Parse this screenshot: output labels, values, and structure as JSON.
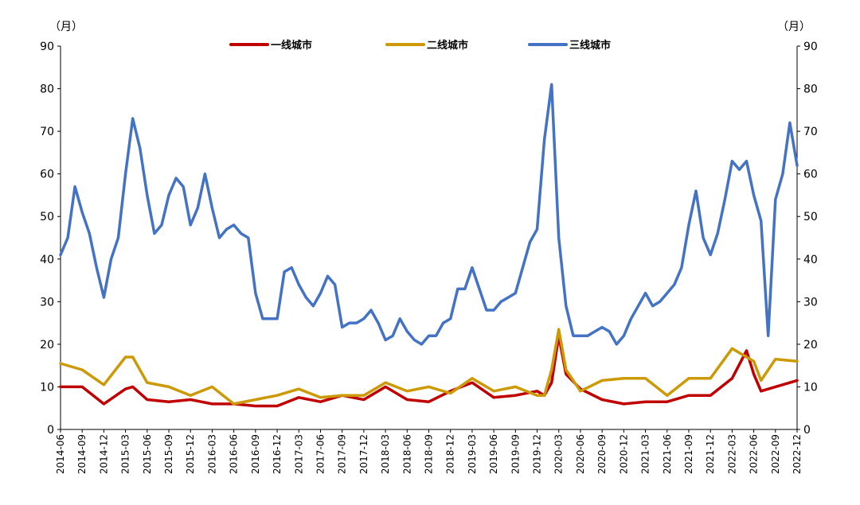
{
  "chart_data": {
    "type": "line",
    "left_unit_label": "（月）",
    "right_unit_label": "（月）",
    "ylim": [
      0,
      90
    ],
    "yticks": [
      0,
      10,
      20,
      30,
      40,
      50,
      60,
      70,
      80,
      90
    ],
    "grid": false,
    "legend_position": "top-center",
    "x_start": "2014-06",
    "x_end": "2022-12",
    "x_tick_labels": [
      "2014-06",
      "2014-09",
      "2014-12",
      "2015-03",
      "2015-06",
      "2015-09",
      "2015-12",
      "2016-03",
      "2016-06",
      "2016-09",
      "2016-12",
      "2017-03",
      "2017-06",
      "2017-09",
      "2017-12",
      "2018-03",
      "2018-06",
      "2018-09",
      "2018-12",
      "2019-03",
      "2019-06",
      "2019-09",
      "2019-12",
      "2020-03",
      "2020-06",
      "2020-09",
      "2020-12",
      "2021-03",
      "2021-06",
      "2021-09",
      "2021-12",
      "2022-03",
      "2022-06",
      "2022-09",
      "2022-12"
    ],
    "series": [
      {
        "name": "一线城市",
        "color": "#C00000",
        "points": [
          [
            "2014-06",
            10
          ],
          [
            "2014-09",
            10
          ],
          [
            "2014-12",
            6
          ],
          [
            "2015-03",
            9.5
          ],
          [
            "2015-04",
            10
          ],
          [
            "2015-06",
            7
          ],
          [
            "2015-09",
            6.5
          ],
          [
            "2015-12",
            7
          ],
          [
            "2016-03",
            6
          ],
          [
            "2016-06",
            6
          ],
          [
            "2016-09",
            5.5
          ],
          [
            "2016-12",
            5.5
          ],
          [
            "2017-03",
            7.5
          ],
          [
            "2017-06",
            6.5
          ],
          [
            "2017-09",
            8
          ],
          [
            "2017-12",
            7
          ],
          [
            "2018-03",
            10
          ],
          [
            "2018-06",
            7
          ],
          [
            "2018-09",
            6.5
          ],
          [
            "2018-12",
            9
          ],
          [
            "2019-03",
            11
          ],
          [
            "2019-06",
            7.5
          ],
          [
            "2019-09",
            8
          ],
          [
            "2019-12",
            9
          ],
          [
            "2020-01",
            8
          ],
          [
            "2020-02",
            11
          ],
          [
            "2020-03",
            22
          ],
          [
            "2020-04",
            13
          ],
          [
            "2020-06",
            9.5
          ],
          [
            "2020-09",
            7
          ],
          [
            "2020-12",
            6
          ],
          [
            "2021-03",
            6.5
          ],
          [
            "2021-06",
            6.5
          ],
          [
            "2021-09",
            8
          ],
          [
            "2021-12",
            8
          ],
          [
            "2022-03",
            12
          ],
          [
            "2022-05",
            18.5
          ],
          [
            "2022-06",
            13
          ],
          [
            "2022-07",
            9
          ],
          [
            "2022-09",
            10
          ],
          [
            "2022-12",
            11.5
          ]
        ]
      },
      {
        "name": "二线城市",
        "color": "#CC9A06",
        "points": [
          [
            "2014-06",
            15.5
          ],
          [
            "2014-09",
            14
          ],
          [
            "2014-12",
            10.5
          ],
          [
            "2015-03",
            17
          ],
          [
            "2015-04",
            17
          ],
          [
            "2015-06",
            11
          ],
          [
            "2015-09",
            10
          ],
          [
            "2015-12",
            8
          ],
          [
            "2016-03",
            10
          ],
          [
            "2016-06",
            6
          ],
          [
            "2016-09",
            7
          ],
          [
            "2016-12",
            8
          ],
          [
            "2017-03",
            9.5
          ],
          [
            "2017-06",
            7.5
          ],
          [
            "2017-09",
            8
          ],
          [
            "2017-12",
            8
          ],
          [
            "2018-03",
            11
          ],
          [
            "2018-06",
            9
          ],
          [
            "2018-09",
            10
          ],
          [
            "2018-12",
            8.5
          ],
          [
            "2019-03",
            12
          ],
          [
            "2019-06",
            9
          ],
          [
            "2019-09",
            10
          ],
          [
            "2019-12",
            8
          ],
          [
            "2020-01",
            8
          ],
          [
            "2020-02",
            14
          ],
          [
            "2020-03",
            23.5
          ],
          [
            "2020-04",
            14
          ],
          [
            "2020-06",
            9
          ],
          [
            "2020-09",
            11.5
          ],
          [
            "2020-12",
            12
          ],
          [
            "2021-03",
            12
          ],
          [
            "2021-06",
            8
          ],
          [
            "2021-09",
            12
          ],
          [
            "2021-12",
            12
          ],
          [
            "2022-03",
            19
          ],
          [
            "2022-05",
            17
          ],
          [
            "2022-06",
            16
          ],
          [
            "2022-07",
            11.5
          ],
          [
            "2022-09",
            16.5
          ],
          [
            "2022-12",
            16
          ]
        ]
      },
      {
        "name": "三线城市",
        "color": "#4472C4",
        "points": [
          [
            "2014-06",
            41
          ],
          [
            "2014-07",
            45
          ],
          [
            "2014-08",
            57
          ],
          [
            "2014-09",
            51
          ],
          [
            "2014-10",
            46
          ],
          [
            "2014-11",
            38
          ],
          [
            "2014-12",
            31
          ],
          [
            "2015-01",
            40
          ],
          [
            "2015-02",
            45
          ],
          [
            "2015-03",
            60
          ],
          [
            "2015-04",
            73
          ],
          [
            "2015-05",
            66
          ],
          [
            "2015-06",
            55
          ],
          [
            "2015-07",
            46
          ],
          [
            "2015-08",
            48
          ],
          [
            "2015-09",
            55
          ],
          [
            "2015-10",
            59
          ],
          [
            "2015-11",
            57
          ],
          [
            "2015-12",
            48
          ],
          [
            "2016-01",
            52
          ],
          [
            "2016-02",
            60
          ],
          [
            "2016-03",
            52
          ],
          [
            "2016-04",
            45
          ],
          [
            "2016-05",
            47
          ],
          [
            "2016-06",
            48
          ],
          [
            "2016-07",
            46
          ],
          [
            "2016-08",
            45
          ],
          [
            "2016-09",
            32
          ],
          [
            "2016-10",
            26
          ],
          [
            "2016-11",
            26
          ],
          [
            "2016-12",
            26
          ],
          [
            "2017-01",
            37
          ],
          [
            "2017-02",
            38
          ],
          [
            "2017-03",
            34
          ],
          [
            "2017-04",
            31
          ],
          [
            "2017-05",
            29
          ],
          [
            "2017-06",
            32
          ],
          [
            "2017-07",
            36
          ],
          [
            "2017-08",
            34
          ],
          [
            "2017-09",
            24
          ],
          [
            "2017-10",
            25
          ],
          [
            "2017-11",
            25
          ],
          [
            "2017-12",
            26
          ],
          [
            "2018-01",
            28
          ],
          [
            "2018-02",
            25
          ],
          [
            "2018-03",
            21
          ],
          [
            "2018-04",
            22
          ],
          [
            "2018-05",
            26
          ],
          [
            "2018-06",
            23
          ],
          [
            "2018-07",
            21
          ],
          [
            "2018-08",
            20
          ],
          [
            "2018-09",
            22
          ],
          [
            "2018-10",
            22
          ],
          [
            "2018-11",
            25
          ],
          [
            "2018-12",
            26
          ],
          [
            "2019-01",
            33
          ],
          [
            "2019-02",
            33
          ],
          [
            "2019-03",
            38
          ],
          [
            "2019-04",
            33
          ],
          [
            "2019-05",
            28
          ],
          [
            "2019-06",
            28
          ],
          [
            "2019-07",
            30
          ],
          [
            "2019-08",
            31
          ],
          [
            "2019-09",
            32
          ],
          [
            "2019-10",
            38
          ],
          [
            "2019-11",
            44
          ],
          [
            "2019-12",
            47
          ],
          [
            "2020-01",
            68
          ],
          [
            "2020-02",
            81
          ],
          [
            "2020-03",
            45
          ],
          [
            "2020-04",
            29
          ],
          [
            "2020-05",
            22
          ],
          [
            "2020-06",
            22
          ],
          [
            "2020-07",
            22
          ],
          [
            "2020-08",
            23
          ],
          [
            "2020-09",
            24
          ],
          [
            "2020-10",
            23
          ],
          [
            "2020-11",
            20
          ],
          [
            "2020-12",
            22
          ],
          [
            "2021-01",
            26
          ],
          [
            "2021-02",
            29
          ],
          [
            "2021-03",
            32
          ],
          [
            "2021-04",
            29
          ],
          [
            "2021-05",
            30
          ],
          [
            "2021-06",
            32
          ],
          [
            "2021-07",
            34
          ],
          [
            "2021-08",
            38
          ],
          [
            "2021-09",
            48
          ],
          [
            "2021-10",
            56
          ],
          [
            "2021-11",
            45
          ],
          [
            "2021-12",
            41
          ],
          [
            "2022-01",
            46
          ],
          [
            "2022-02",
            54
          ],
          [
            "2022-03",
            63
          ],
          [
            "2022-04",
            61
          ],
          [
            "2022-05",
            63
          ],
          [
            "2022-06",
            55
          ],
          [
            "2022-07",
            49
          ],
          [
            "2022-08",
            22
          ],
          [
            "2022-09",
            54
          ],
          [
            "2022-10",
            60
          ],
          [
            "2022-11",
            72
          ],
          [
            "2022-12",
            62
          ]
        ]
      }
    ]
  }
}
